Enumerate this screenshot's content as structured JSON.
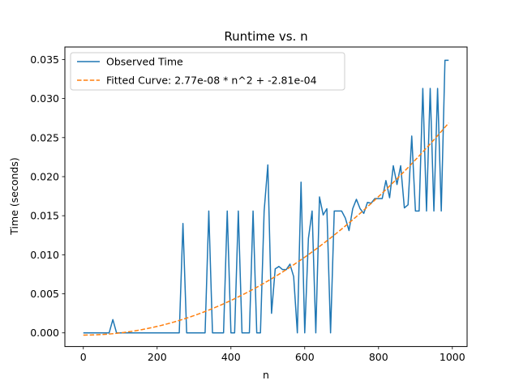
{
  "chart_data": {
    "type": "line",
    "title": "Runtime vs. n",
    "xlabel": "n",
    "ylabel": "Time (seconds)",
    "xlim": [
      -50,
      1040
    ],
    "ylim": [
      -0.00175,
      0.0366
    ],
    "xticks": [
      0,
      200,
      400,
      600,
      800,
      1000
    ],
    "yticks": [
      0.0,
      0.005,
      0.01,
      0.015,
      0.02,
      0.025,
      0.03,
      0.035
    ],
    "xtick_labels": [
      "0",
      "200",
      "400",
      "600",
      "800",
      "1000"
    ],
    "ytick_labels": [
      "0.000",
      "0.005",
      "0.010",
      "0.015",
      "0.020",
      "0.025",
      "0.030",
      "0.035"
    ],
    "grid": false,
    "legend_position": "top-left",
    "series": [
      {
        "name": "Observed Time",
        "color": "#1f77b4",
        "style": "solid",
        "x": [
          0,
          10,
          20,
          30,
          40,
          50,
          60,
          70,
          80,
          90,
          100,
          110,
          120,
          130,
          140,
          150,
          160,
          170,
          180,
          190,
          200,
          210,
          220,
          230,
          240,
          250,
          260,
          270,
          280,
          290,
          300,
          310,
          320,
          330,
          340,
          350,
          360,
          370,
          380,
          390,
          400,
          410,
          420,
          430,
          440,
          450,
          460,
          470,
          480,
          490,
          500,
          510,
          520,
          530,
          540,
          550,
          560,
          570,
          580,
          590,
          600,
          610,
          620,
          630,
          640,
          650,
          660,
          670,
          680,
          690,
          700,
          710,
          720,
          730,
          740,
          750,
          760,
          770,
          780,
          790,
          800,
          810,
          820,
          830,
          840,
          850,
          860,
          870,
          880,
          890,
          900,
          910,
          920,
          930,
          940,
          950,
          960,
          970,
          980,
          990
        ],
        "y": [
          0,
          0,
          0,
          0,
          0,
          0,
          0,
          0,
          0.0017,
          0,
          0,
          0,
          0,
          0,
          0,
          0,
          0,
          0,
          0,
          0,
          0,
          0,
          0,
          0,
          0,
          0,
          0,
          0.014,
          0,
          0,
          0,
          0,
          0,
          0,
          0.0156,
          0,
          0,
          0,
          0,
          0.0156,
          0,
          0,
          0.0156,
          0,
          0,
          0,
          0.0156,
          0,
          0,
          0.0156,
          0.0215,
          0.0025,
          0.0082,
          0.0085,
          0.0081,
          0.0081,
          0.0088,
          0.0072,
          0,
          0.0193,
          0,
          0.0121,
          0.0156,
          0,
          0.0174,
          0.0151,
          0.0159,
          0,
          0.0156,
          0.0156,
          0.0156,
          0.0147,
          0.0131,
          0.0159,
          0.0171,
          0.0159,
          0.0153,
          0.0167,
          0.0166,
          0.0172,
          0.0172,
          0.0172,
          0.0195,
          0.0173,
          0.0214,
          0.019,
          0.0214,
          0.016,
          0.0164,
          0.0252,
          0.0156,
          0.0156,
          0.0313,
          0.0156,
          0.0313,
          0.0156,
          0.0313,
          0.0156,
          0.0349,
          0.0349
        ]
      },
      {
        "name": "Fitted Curve: 2.77e-08 * n^2 + -2.81e-04",
        "color": "#ff7f0e",
        "style": "dashed",
        "a": 2.77e-08,
        "b": -0.000281,
        "x_range": [
          0,
          990
        ]
      }
    ]
  }
}
